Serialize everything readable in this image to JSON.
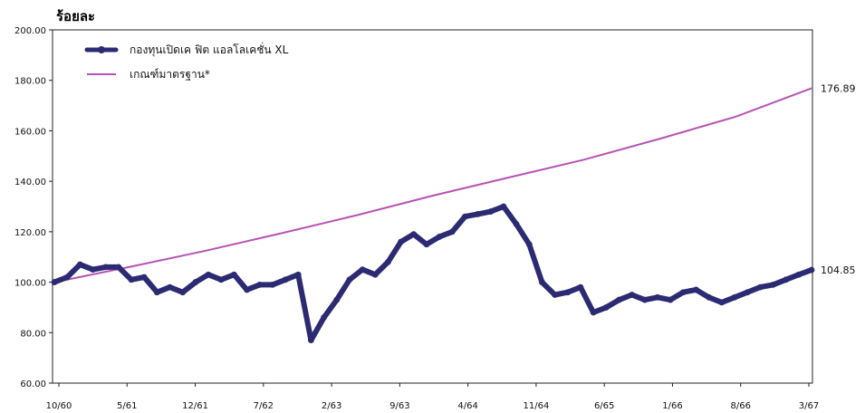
{
  "chart_data": {
    "type": "line",
    "ylabel": "ร้อยละ",
    "ylim": [
      60,
      200
    ],
    "yticks": [
      "60.00",
      "80.00",
      "100.00",
      "120.00",
      "140.00",
      "160.00",
      "180.00",
      "200.00"
    ],
    "x_tick_labels": [
      "10/60",
      "5/61",
      "12/61",
      "7/62",
      "2/63",
      "9/63",
      "4/64",
      "11/64",
      "6/65",
      "1/66",
      "8/66",
      "3/67"
    ],
    "grid": false,
    "legend_position": "top-left",
    "series": [
      {
        "name": "กองทุนเปิดเค ฟิต แอลโลเคชั่น XL",
        "color": "#2b2a72",
        "end_label": "104.85",
        "values": [
          100,
          102,
          107,
          105,
          106,
          106,
          101,
          102,
          96,
          98,
          96,
          100,
          103,
          101,
          103,
          97,
          99,
          99,
          101,
          103,
          77,
          86,
          93,
          101,
          105,
          103,
          108,
          116,
          119,
          115,
          118,
          120,
          126,
          127,
          128,
          130,
          123,
          115,
          100,
          95,
          96,
          98,
          88,
          90,
          93,
          95,
          93,
          94,
          93,
          96,
          97,
          94,
          92,
          94,
          96,
          98,
          99,
          101,
          103,
          104.85
        ]
      },
      {
        "name": "เกณฑ์มาตรฐาน*",
        "color": "#b553b5",
        "end_label": "176.89",
        "values": [
          100,
          106.1,
          112.5,
          119.4,
          126.6,
          134.3,
          141.5,
          148.6,
          156.9,
          165.6,
          176.89
        ]
      }
    ]
  }
}
